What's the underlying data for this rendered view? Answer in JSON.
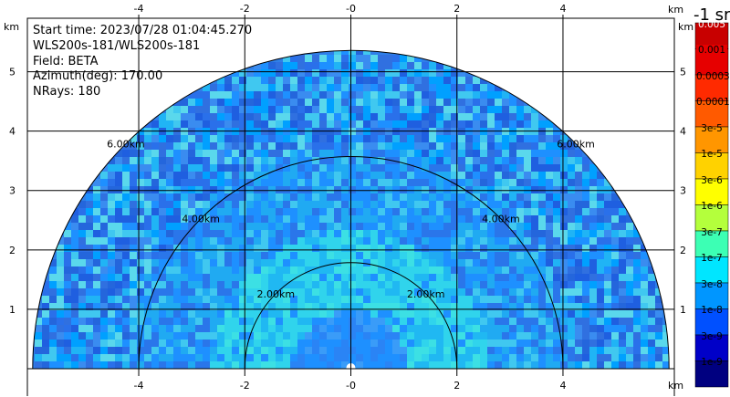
{
  "info": {
    "start_time": "Start time: 2023/07/28 01:04:45.270",
    "instrument": "WLS200s-181/WLS200s-181",
    "field": "Field: BETA",
    "azimuth": "Azimuth(deg): 170.00",
    "nrays": "NRays: 180"
  },
  "colorbar": {
    "unit_title": "-1 sr",
    "labels": [
      "0.005",
      "0.001",
      "0.0003",
      "0.0001",
      "3e-5",
      "1e-5",
      "3e-6",
      "1e-6",
      "3e-7",
      "1e-7",
      "3e-8",
      "1e-8",
      "3e-9",
      "1e-9"
    ],
    "colors": [
      "#c80000",
      "#e60000",
      "#ff2a00",
      "#ff5a00",
      "#ff9600",
      "#ffd200",
      "#ffff00",
      "#b4ff3c",
      "#3cffb4",
      "#00e6ff",
      "#0096ff",
      "#0050ff",
      "#0000c8",
      "#000080"
    ]
  },
  "axes": {
    "unit": "km",
    "x_ticks": [
      "-4",
      "-2",
      "-0",
      "2",
      "4"
    ],
    "y_ticks": [
      "1",
      "2",
      "3",
      "4",
      "5"
    ]
  },
  "range_rings": [
    "2.00km",
    "4.00km",
    "6.00km"
  ],
  "chart_data": {
    "type": "heatmap",
    "title": "",
    "field": "BETA",
    "azimuth_deg": 170.0,
    "nrays": 180,
    "xlim": [
      -6.1,
      6.1
    ],
    "ylim": [
      0,
      5.9
    ],
    "x_ticks": [
      -4,
      -2,
      0,
      2,
      4
    ],
    "y_ticks": [
      1,
      2,
      3,
      4,
      5
    ],
    "range_rings_km": [
      2,
      4,
      6
    ],
    "max_range_km": 6.0,
    "colorbar_scale": "log",
    "colorbar_range": [
      1e-09,
      0.005
    ],
    "dominant_values": {
      "near_range_0_1km": "3e-8 to 1e-7",
      "mid_range_1_3km": "1e-7 to 3e-7",
      "far_range_3_6km": "1e-8 to 1e-7"
    }
  }
}
